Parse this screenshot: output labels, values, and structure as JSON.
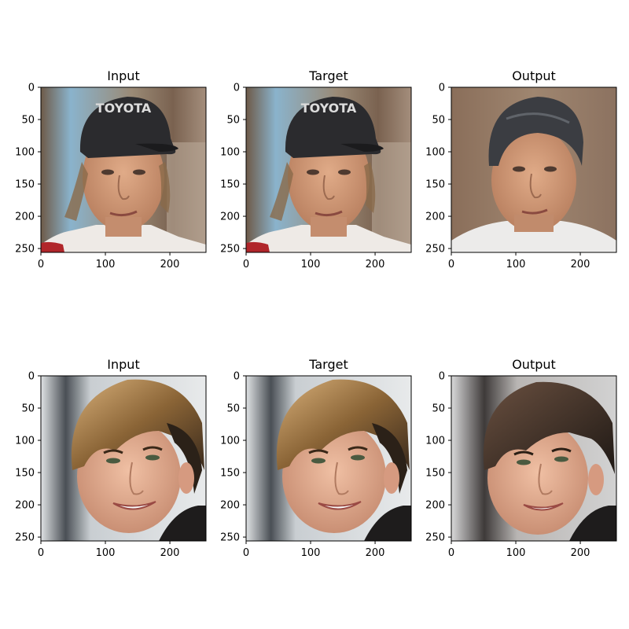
{
  "chart_data": {
    "type": "image_grid",
    "rows": 2,
    "cols": 3,
    "panels": [
      {
        "title": "Input",
        "content": "face-photo-man-in-cap"
      },
      {
        "title": "Target",
        "content": "face-photo-man-in-cap"
      },
      {
        "title": "Output",
        "content": "face-photo-man-generated"
      },
      {
        "title": "Input",
        "content": "face-photo-young-man-blond-fringe"
      },
      {
        "title": "Target",
        "content": "face-photo-young-man-blond-fringe"
      },
      {
        "title": "Output",
        "content": "face-photo-young-man-generated"
      }
    ],
    "x_ticks": [
      "0",
      "100",
      "200"
    ],
    "y_ticks": [
      "0",
      "50",
      "100",
      "150",
      "200",
      "250"
    ],
    "x_tick_values": [
      0,
      100,
      200
    ],
    "y_tick_values": [
      0,
      50,
      100,
      150,
      200,
      250
    ],
    "xlim": [
      0,
      256
    ],
    "ylim": [
      256,
      0
    ],
    "grid": false
  },
  "colors": {
    "background": "#ffffff",
    "axes": "#000000",
    "sky": "#7fb0cf",
    "skin": "#d09a78",
    "cap": "#2b2b2e",
    "hair_blond": "#8a6436",
    "hair_dark": "#2b2118"
  }
}
